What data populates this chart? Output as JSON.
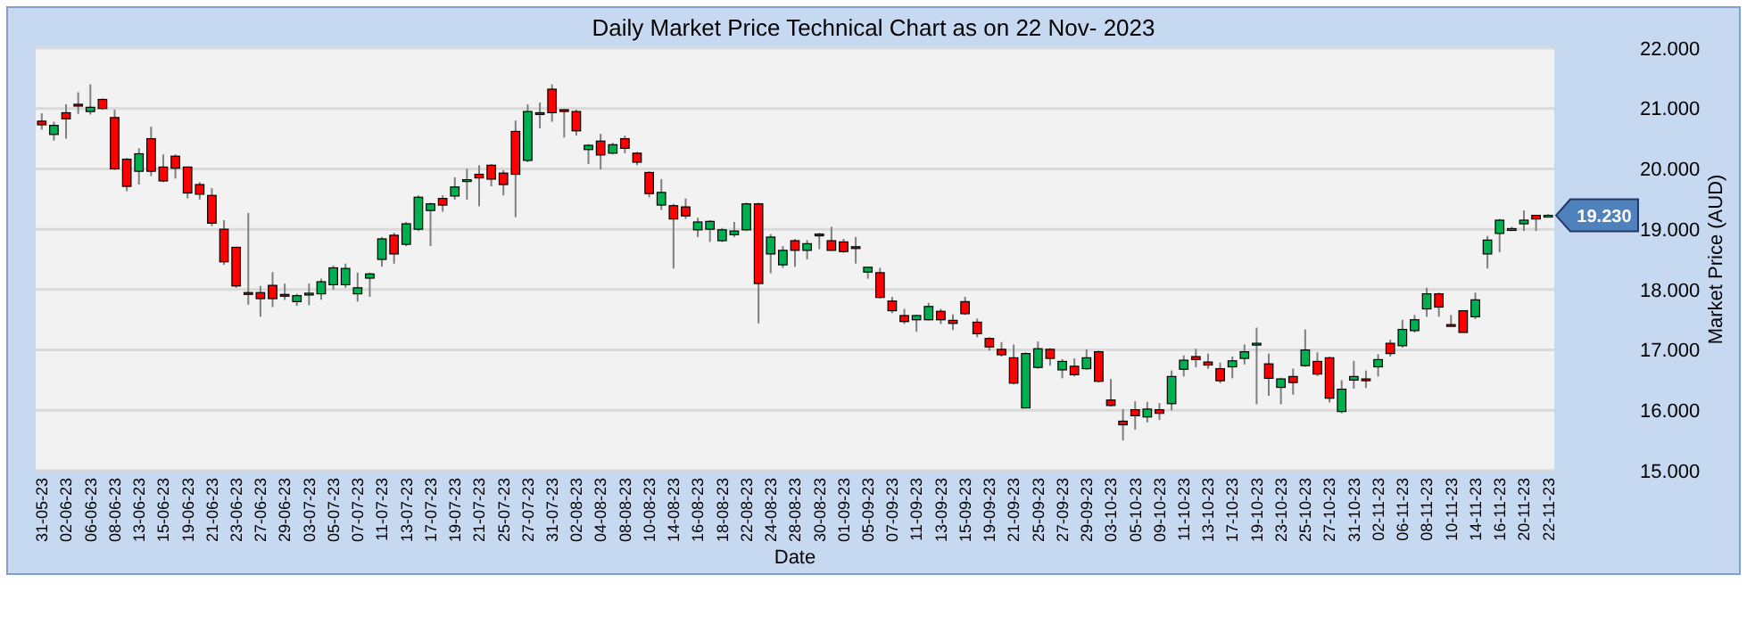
{
  "chart_data": {
    "type": "candlestick",
    "title": "Daily Market Price Technical Chart as on 22 Nov- 2023",
    "xlabel": "Date",
    "ylabel": "Market Price (AUD)",
    "categories": [
      "31-05-23",
      null,
      "02-06-23",
      null,
      "06-06-23",
      null,
      "08-06-23",
      null,
      "13-06-23",
      null,
      "15-06-23",
      null,
      "19-06-23",
      null,
      "21-06-23",
      null,
      "23-06-23",
      null,
      "27-06-23",
      null,
      "29-06-23",
      null,
      "03-07-23",
      null,
      "05-07-23",
      null,
      "07-07-23",
      null,
      "11-07-23",
      null,
      "13-07-23",
      null,
      "17-07-23",
      null,
      "19-07-23",
      null,
      "21-07-23",
      null,
      "25-07-23",
      null,
      "27-07-23",
      null,
      "31-07-23",
      null,
      "02-08-23",
      null,
      "04-08-23",
      null,
      "08-08-23",
      null,
      "10-08-23",
      null,
      "14-08-23",
      null,
      "16-08-23",
      null,
      "18-08-23",
      null,
      "22-08-23",
      null,
      "24-08-23",
      null,
      "28-08-23",
      null,
      "30-08-23",
      null,
      "01-09-23",
      null,
      "05-09-23",
      null,
      "07-09-23",
      null,
      "11-09-23",
      null,
      "13-09-23",
      null,
      "15-09-23",
      null,
      "19-09-23",
      null,
      "21-09-23",
      null,
      "25-09-23",
      null,
      "27-09-23",
      null,
      "29-09-23",
      null,
      "03-10-23",
      null,
      "05-10-23",
      null,
      "09-10-23",
      null,
      "11-10-23",
      null,
      "13-10-23",
      null,
      "17-10-23",
      null,
      "19-10-23",
      null,
      "23-10-23",
      null,
      "25-10-23",
      null,
      "27-10-23",
      null,
      "31-10-23",
      null,
      "02-11-23",
      null,
      "06-11-23",
      null,
      "08-11-23",
      null,
      "10-11-23",
      null,
      "14-11-23",
      null,
      "16-11-23",
      null,
      "20-11-23",
      null,
      "22-11-23"
    ],
    "ohlc": [
      [
        20.79,
        20.92,
        20.65,
        20.73
      ],
      [
        20.57,
        20.78,
        20.47,
        20.72
      ],
      [
        20.93,
        21.07,
        20.5,
        20.83
      ],
      [
        21.07,
        21.27,
        20.91,
        21.05
      ],
      [
        20.95,
        21.4,
        20.9,
        21.02
      ],
      [
        21.15,
        21.17,
        20.98,
        21.0
      ],
      [
        20.85,
        20.98,
        19.98,
        20.0
      ],
      [
        20.16,
        20.18,
        19.63,
        19.71
      ],
      [
        19.96,
        20.34,
        19.74,
        20.25
      ],
      [
        20.5,
        20.7,
        19.88,
        19.96
      ],
      [
        20.03,
        20.24,
        19.78,
        19.8
      ],
      [
        20.21,
        20.24,
        19.84,
        20.01
      ],
      [
        20.03,
        20.04,
        19.51,
        19.6
      ],
      [
        19.74,
        19.78,
        19.49,
        19.58
      ],
      [
        19.56,
        19.68,
        19.05,
        19.1
      ],
      [
        19.0,
        19.15,
        18.41,
        18.46
      ],
      [
        18.7,
        18.71,
        18.03,
        18.06
      ],
      [
        17.95,
        19.27,
        17.75,
        17.94
      ],
      [
        17.95,
        18.06,
        17.55,
        17.85
      ],
      [
        18.07,
        18.29,
        17.71,
        17.85
      ],
      [
        17.92,
        18.1,
        17.83,
        17.91
      ],
      [
        17.8,
        17.93,
        17.73,
        17.9
      ],
      [
        17.93,
        18.1,
        17.74,
        17.94
      ],
      [
        17.93,
        18.18,
        17.83,
        18.13
      ],
      [
        18.08,
        18.4,
        18.0,
        18.36
      ],
      [
        18.08,
        18.43,
        18.03,
        18.35
      ],
      [
        17.93,
        18.28,
        17.8,
        18.03
      ],
      [
        18.19,
        18.28,
        17.88,
        18.26
      ],
      [
        18.5,
        18.87,
        18.38,
        18.84
      ],
      [
        18.9,
        18.94,
        18.43,
        18.59
      ],
      [
        18.75,
        19.12,
        18.72,
        19.09
      ],
      [
        19.0,
        19.56,
        18.97,
        19.53
      ],
      [
        19.31,
        19.44,
        18.72,
        19.42
      ],
      [
        19.51,
        19.56,
        19.29,
        19.4
      ],
      [
        19.55,
        19.86,
        19.49,
        19.7
      ],
      [
        19.8,
        20.0,
        19.49,
        19.82
      ],
      [
        19.91,
        20.06,
        19.38,
        19.85
      ],
      [
        20.06,
        20.08,
        19.71,
        19.83
      ],
      [
        19.93,
        19.98,
        19.56,
        19.74
      ],
      [
        20.62,
        20.8,
        19.2,
        19.91
      ],
      [
        20.14,
        21.07,
        20.11,
        20.95
      ],
      [
        20.93,
        21.1,
        20.67,
        20.92
      ],
      [
        21.32,
        21.4,
        20.78,
        20.93
      ],
      [
        20.98,
        20.99,
        20.52,
        20.97
      ],
      [
        20.95,
        20.98,
        20.55,
        20.63
      ],
      [
        20.32,
        20.41,
        20.08,
        20.39
      ],
      [
        20.46,
        20.58,
        19.99,
        20.23
      ],
      [
        20.26,
        20.43,
        20.24,
        20.4
      ],
      [
        20.5,
        20.55,
        20.26,
        20.34
      ],
      [
        20.26,
        20.28,
        20.06,
        20.11
      ],
      [
        19.94,
        19.96,
        19.53,
        19.59
      ],
      [
        19.4,
        19.83,
        19.32,
        19.61
      ],
      [
        19.39,
        19.42,
        18.35,
        19.17
      ],
      [
        19.37,
        19.51,
        19.17,
        19.22
      ],
      [
        18.99,
        19.19,
        18.87,
        19.12
      ],
      [
        19.0,
        19.15,
        18.79,
        19.13
      ],
      [
        18.81,
        19.02,
        18.79,
        18.99
      ],
      [
        18.91,
        19.12,
        18.87,
        18.97
      ],
      [
        18.99,
        19.44,
        18.97,
        19.42
      ],
      [
        19.42,
        19.44,
        17.44,
        18.1
      ],
      [
        18.59,
        18.92,
        18.27,
        18.87
      ],
      [
        18.41,
        18.72,
        18.36,
        18.65
      ],
      [
        18.81,
        18.84,
        18.38,
        18.65
      ],
      [
        18.65,
        18.82,
        18.5,
        18.76
      ],
      [
        18.92,
        18.94,
        18.67,
        18.91
      ],
      [
        18.81,
        19.04,
        18.64,
        18.65
      ],
      [
        18.79,
        18.84,
        18.61,
        18.63
      ],
      [
        18.71,
        18.87,
        18.43,
        18.7
      ],
      [
        18.29,
        18.37,
        18.18,
        18.37
      ],
      [
        18.28,
        18.36,
        17.85,
        17.87
      ],
      [
        17.81,
        17.88,
        17.61,
        17.65
      ],
      [
        17.57,
        17.68,
        17.43,
        17.47
      ],
      [
        17.5,
        17.58,
        17.3,
        17.57
      ],
      [
        17.5,
        17.78,
        17.49,
        17.72
      ],
      [
        17.64,
        17.68,
        17.43,
        17.5
      ],
      [
        17.49,
        17.59,
        17.33,
        17.44
      ],
      [
        17.8,
        17.88,
        17.58,
        17.6
      ],
      [
        17.46,
        17.52,
        17.21,
        17.27
      ],
      [
        17.19,
        17.21,
        16.99,
        17.05
      ],
      [
        17.01,
        17.13,
        16.89,
        16.92
      ],
      [
        16.87,
        17.09,
        16.43,
        16.45
      ],
      [
        16.04,
        16.96,
        16.04,
        16.94
      ],
      [
        16.71,
        17.14,
        16.69,
        17.02
      ],
      [
        17.01,
        17.03,
        16.74,
        16.86
      ],
      [
        16.67,
        16.85,
        16.53,
        16.81
      ],
      [
        16.73,
        16.86,
        16.56,
        16.59
      ],
      [
        16.69,
        17.01,
        16.67,
        16.87
      ],
      [
        16.97,
        16.99,
        16.46,
        16.48
      ],
      [
        16.17,
        16.52,
        16.06,
        16.08
      ],
      [
        15.82,
        16.02,
        15.5,
        15.76
      ],
      [
        16.01,
        16.15,
        15.68,
        15.91
      ],
      [
        15.89,
        16.14,
        15.8,
        16.02
      ],
      [
        16.01,
        16.12,
        15.84,
        15.95
      ],
      [
        16.11,
        16.66,
        16.0,
        16.56
      ],
      [
        16.68,
        16.91,
        16.56,
        16.83
      ],
      [
        16.89,
        17.02,
        16.71,
        16.84
      ],
      [
        16.8,
        16.94,
        16.69,
        16.75
      ],
      [
        16.69,
        16.79,
        16.45,
        16.49
      ],
      [
        16.72,
        16.89,
        16.53,
        16.82
      ],
      [
        16.86,
        17.09,
        16.76,
        16.97
      ],
      [
        17.1,
        17.37,
        16.1,
        17.11
      ],
      [
        16.77,
        16.94,
        16.24,
        16.53
      ],
      [
        16.38,
        16.54,
        16.1,
        16.52
      ],
      [
        16.56,
        16.69,
        16.26,
        16.46
      ],
      [
        16.74,
        17.34,
        16.72,
        17.0
      ],
      [
        16.81,
        16.96,
        16.57,
        16.6
      ],
      [
        16.87,
        16.89,
        16.13,
        16.2
      ],
      [
        15.98,
        16.5,
        15.95,
        16.35
      ],
      [
        16.5,
        16.82,
        16.36,
        16.56
      ],
      [
        16.52,
        16.66,
        16.37,
        16.51
      ],
      [
        16.72,
        16.93,
        16.56,
        16.84
      ],
      [
        17.11,
        17.17,
        16.89,
        16.94
      ],
      [
        17.07,
        17.5,
        17.04,
        17.34
      ],
      [
        17.32,
        17.58,
        17.29,
        17.5
      ],
      [
        17.68,
        18.03,
        17.55,
        17.93
      ],
      [
        17.93,
        17.95,
        17.55,
        17.71
      ],
      [
        17.42,
        17.58,
        17.39,
        17.41
      ],
      [
        17.65,
        17.65,
        17.29,
        17.29
      ],
      [
        17.55,
        17.95,
        17.51,
        17.83
      ],
      [
        18.59,
        18.89,
        18.35,
        18.82
      ],
      [
        18.93,
        19.17,
        18.62,
        19.15
      ],
      [
        19.0,
        19.04,
        18.97,
        19.01
      ],
      [
        19.09,
        19.31,
        18.97,
        19.15
      ],
      [
        19.23,
        19.23,
        18.97,
        19.17
      ],
      [
        19.22,
        19.25,
        19.2,
        19.23
      ]
    ],
    "colors": [
      "#ff0000",
      "#00b050",
      "#ff0000",
      "#ff0000",
      "#00b050",
      "#ff0000",
      "#ff0000",
      "#ff0000",
      "#00b050",
      "#ff0000",
      "#ff0000",
      "#ff0000",
      "#ff0000",
      "#ff0000",
      "#ff0000",
      "#ff0000",
      "#ff0000",
      "#ff0000",
      "#ff0000",
      "#ff0000",
      "#ff0000",
      "#00b050",
      "#00b050",
      "#00b050",
      "#00b050",
      "#00b050",
      "#00b050",
      "#00b050",
      "#00b050",
      "#ff0000",
      "#00b050",
      "#00b050",
      "#00b050",
      "#ff0000",
      "#00b050",
      "#00b050",
      "#ff0000",
      "#ff0000",
      "#ff0000",
      "#ff0000",
      "#00b050",
      "#ff0000",
      "#ff0000",
      "#ff0000",
      "#ff0000",
      "#00b050",
      "#ff0000",
      "#00b050",
      "#ff0000",
      "#ff0000",
      "#ff0000",
      "#00b050",
      "#ff0000",
      "#ff0000",
      "#00b050",
      "#00b050",
      "#00b050",
      "#00b050",
      "#00b050",
      "#ff0000",
      "#00b050",
      "#00b050",
      "#ff0000",
      "#00b050",
      "#ff0000",
      "#ff0000",
      "#ff0000",
      "#ff0000",
      "#00b050",
      "#ff0000",
      "#ff0000",
      "#ff0000",
      "#00b050",
      "#00b050",
      "#ff0000",
      "#ff0000",
      "#ff0000",
      "#ff0000",
      "#ff0000",
      "#ff0000",
      "#ff0000",
      "#00b050",
      "#00b050",
      "#ff0000",
      "#00b050",
      "#ff0000",
      "#00b050",
      "#ff0000",
      "#ff0000",
      "#ff0000",
      "#ff0000",
      "#00b050",
      "#ff0000",
      "#00b050",
      "#00b050",
      "#ff0000",
      "#ff0000",
      "#ff0000",
      "#00b050",
      "#00b050",
      "#00b050",
      "#ff0000",
      "#00b050",
      "#ff0000",
      "#00b050",
      "#ff0000",
      "#ff0000",
      "#00b050",
      "#00b050",
      "#ff0000",
      "#00b050",
      "#ff0000",
      "#00b050",
      "#00b050",
      "#00b050",
      "#ff0000",
      "#ff0000",
      "#ff0000",
      "#00b050",
      "#00b050",
      "#00b050",
      "#00b050",
      "#00b050",
      "#ff0000",
      "#00b050"
    ],
    "ylim": [
      15,
      22
    ],
    "yticks": [
      {
        "value": 15,
        "label": "15.000"
      },
      {
        "value": 16,
        "label": "16.000"
      },
      {
        "value": 17,
        "label": "17.000"
      },
      {
        "value": 18,
        "label": "18.000"
      },
      {
        "value": 19,
        "label": "19.000"
      },
      {
        "value": 20,
        "label": "20.000"
      },
      {
        "value": 21,
        "label": "21.000"
      },
      {
        "value": 22,
        "label": "22.000"
      }
    ],
    "grid": "y",
    "annotations": [
      {
        "text": "19.230",
        "x": "22-11-23",
        "y": 19.23
      }
    ]
  }
}
